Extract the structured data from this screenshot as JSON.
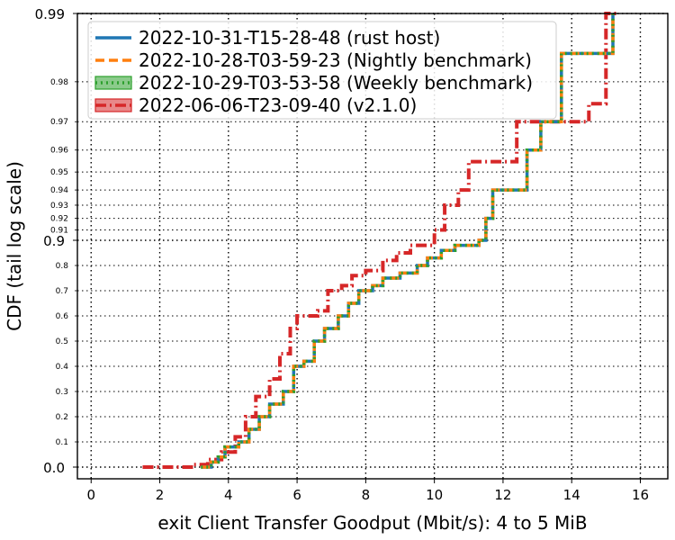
{
  "chart_data": {
    "type": "line",
    "xlabel": "exit Client Transfer Goodput (Mbit/s): 4 to 5 MiB",
    "ylabel": "CDF (tail log scale)",
    "xlim": [
      -0.4,
      16.8
    ],
    "xticks": [
      0,
      2,
      4,
      6,
      8,
      10,
      12,
      14,
      16
    ],
    "yscale": "tail log",
    "yticks_major": [
      "0.0",
      "0.9",
      "0.99"
    ],
    "yticks_minor": [
      "0.1",
      "0.2",
      "0.3",
      "0.4",
      "0.5",
      "0.6",
      "0.7",
      "0.8",
      "0.91",
      "0.92",
      "0.93",
      "0.94",
      "0.95",
      "0.96",
      "0.97",
      "0.98"
    ],
    "grid": true,
    "legend_position": "top-left",
    "series": [
      {
        "name": "2022-10-31-T15-28-48 (rust host)",
        "color": "#1f77b4",
        "style": "solid",
        "points": [
          [
            3.2,
            0.0
          ],
          [
            3.5,
            0.02
          ],
          [
            3.7,
            0.04
          ],
          [
            3.9,
            0.08
          ],
          [
            4.3,
            0.1
          ],
          [
            4.6,
            0.15
          ],
          [
            4.9,
            0.2
          ],
          [
            5.2,
            0.25
          ],
          [
            5.6,
            0.3
          ],
          [
            5.9,
            0.4
          ],
          [
            6.2,
            0.42
          ],
          [
            6.5,
            0.5
          ],
          [
            6.8,
            0.55
          ],
          [
            7.2,
            0.6
          ],
          [
            7.5,
            0.65
          ],
          [
            7.8,
            0.7
          ],
          [
            8.2,
            0.72
          ],
          [
            8.5,
            0.75
          ],
          [
            9.0,
            0.77
          ],
          [
            9.5,
            0.8
          ],
          [
            9.8,
            0.83
          ],
          [
            10.2,
            0.86
          ],
          [
            10.6,
            0.88
          ],
          [
            11.0,
            0.88
          ],
          [
            11.3,
            0.9
          ],
          [
            11.5,
            0.92
          ],
          [
            11.7,
            0.94
          ],
          [
            12.4,
            0.94
          ],
          [
            12.7,
            0.96
          ],
          [
            13.1,
            0.97
          ],
          [
            13.7,
            0.985
          ],
          [
            14.6,
            0.985
          ],
          [
            15.2,
            0.99
          ]
        ]
      },
      {
        "name": "2022-10-28-T03-59-23 (Nightly benchmark)",
        "color": "#ff7f0e",
        "style": "dashed",
        "points": [
          [
            3.2,
            0.0
          ],
          [
            3.5,
            0.02
          ],
          [
            3.7,
            0.04
          ],
          [
            3.9,
            0.08
          ],
          [
            4.3,
            0.1
          ],
          [
            4.6,
            0.15
          ],
          [
            4.9,
            0.2
          ],
          [
            5.2,
            0.25
          ],
          [
            5.6,
            0.3
          ],
          [
            5.9,
            0.4
          ],
          [
            6.2,
            0.42
          ],
          [
            6.5,
            0.5
          ],
          [
            6.8,
            0.55
          ],
          [
            7.2,
            0.6
          ],
          [
            7.5,
            0.65
          ],
          [
            7.8,
            0.7
          ],
          [
            8.2,
            0.72
          ],
          [
            8.5,
            0.75
          ],
          [
            9.0,
            0.77
          ],
          [
            9.5,
            0.8
          ],
          [
            9.8,
            0.83
          ],
          [
            10.2,
            0.86
          ],
          [
            10.6,
            0.88
          ],
          [
            11.0,
            0.88
          ],
          [
            11.3,
            0.9
          ],
          [
            11.5,
            0.92
          ],
          [
            11.7,
            0.94
          ],
          [
            12.4,
            0.94
          ],
          [
            12.7,
            0.96
          ],
          [
            13.1,
            0.97
          ],
          [
            13.7,
            0.985
          ],
          [
            14.6,
            0.985
          ],
          [
            15.2,
            0.99
          ]
        ]
      },
      {
        "name": "2022-10-29-T03-53-58 (Weekly benchmark)",
        "color": "#2ca02c",
        "style": "dotted",
        "points": [
          [
            3.2,
            0.0
          ],
          [
            3.5,
            0.02
          ],
          [
            3.7,
            0.04
          ],
          [
            3.9,
            0.08
          ],
          [
            4.3,
            0.1
          ],
          [
            4.6,
            0.15
          ],
          [
            4.9,
            0.2
          ],
          [
            5.2,
            0.25
          ],
          [
            5.6,
            0.3
          ],
          [
            5.9,
            0.4
          ],
          [
            6.2,
            0.42
          ],
          [
            6.5,
            0.5
          ],
          [
            6.8,
            0.55
          ],
          [
            7.2,
            0.6
          ],
          [
            7.5,
            0.65
          ],
          [
            7.8,
            0.7
          ],
          [
            8.2,
            0.72
          ],
          [
            8.5,
            0.75
          ],
          [
            9.0,
            0.77
          ],
          [
            9.5,
            0.8
          ],
          [
            9.8,
            0.83
          ],
          [
            10.2,
            0.86
          ],
          [
            10.6,
            0.88
          ],
          [
            11.0,
            0.88
          ],
          [
            11.3,
            0.9
          ],
          [
            11.5,
            0.92
          ],
          [
            11.7,
            0.94
          ],
          [
            12.4,
            0.94
          ],
          [
            12.7,
            0.96
          ],
          [
            13.1,
            0.97
          ],
          [
            13.7,
            0.985
          ],
          [
            14.6,
            0.985
          ],
          [
            15.2,
            0.99
          ]
        ]
      },
      {
        "name": "2022-06-06-T23-09-40 (v2.1.0)",
        "color": "#d62728",
        "style": "dashdot",
        "points": [
          [
            1.5,
            0.0
          ],
          [
            2.6,
            0.0
          ],
          [
            3.0,
            0.01
          ],
          [
            3.4,
            0.03
          ],
          [
            3.8,
            0.06
          ],
          [
            4.2,
            0.12
          ],
          [
            4.5,
            0.2
          ],
          [
            4.8,
            0.28
          ],
          [
            5.2,
            0.35
          ],
          [
            5.5,
            0.45
          ],
          [
            5.8,
            0.55
          ],
          [
            6.0,
            0.6
          ],
          [
            6.6,
            0.62
          ],
          [
            6.9,
            0.7
          ],
          [
            7.3,
            0.72
          ],
          [
            7.6,
            0.76
          ],
          [
            8.0,
            0.78
          ],
          [
            8.5,
            0.82
          ],
          [
            8.9,
            0.85
          ],
          [
            9.3,
            0.88
          ],
          [
            9.7,
            0.88
          ],
          [
            10.0,
            0.91
          ],
          [
            10.3,
            0.93
          ],
          [
            10.7,
            0.94
          ],
          [
            11.0,
            0.955
          ],
          [
            12.0,
            0.955
          ],
          [
            12.4,
            0.97
          ],
          [
            13.5,
            0.97
          ],
          [
            14.5,
            0.975
          ],
          [
            15.0,
            0.99
          ],
          [
            15.3,
            0.99
          ]
        ]
      }
    ]
  }
}
